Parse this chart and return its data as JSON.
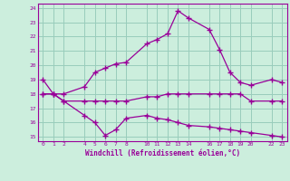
{
  "xlabel": "Windchill (Refroidissement éolien,°C)",
  "bg_color": "#cceedd",
  "grid_color": "#99ccbb",
  "line_color": "#990099",
  "line1_x": [
    0,
    1,
    2,
    4,
    5,
    6,
    7,
    8,
    10,
    11,
    12,
    13,
    14,
    16,
    17,
    18,
    19,
    20,
    22,
    23
  ],
  "line1_y": [
    19.0,
    18.0,
    18.0,
    18.5,
    19.5,
    19.8,
    20.1,
    20.2,
    21.5,
    21.8,
    22.2,
    23.8,
    23.3,
    22.5,
    21.1,
    19.5,
    18.8,
    18.6,
    19.0,
    18.8
  ],
  "line2_x": [
    0,
    1,
    2,
    4,
    5,
    6,
    7,
    8,
    10,
    11,
    12,
    13,
    14,
    16,
    17,
    18,
    19,
    20,
    22,
    23
  ],
  "line2_y": [
    18.0,
    18.0,
    17.5,
    17.5,
    17.5,
    17.5,
    17.5,
    17.5,
    17.8,
    17.8,
    18.0,
    18.0,
    18.0,
    18.0,
    18.0,
    18.0,
    18.0,
    17.5,
    17.5,
    17.5
  ],
  "line3_x": [
    0,
    1,
    2,
    4,
    5,
    6,
    7,
    8,
    10,
    11,
    12,
    13,
    14,
    16,
    17,
    18,
    19,
    20,
    22,
    23
  ],
  "line3_y": [
    18.0,
    18.0,
    17.5,
    16.5,
    16.0,
    15.1,
    15.5,
    16.3,
    16.5,
    16.3,
    16.2,
    16.0,
    15.8,
    15.7,
    15.6,
    15.5,
    15.4,
    15.3,
    15.1,
    15.0
  ],
  "xticks": [
    0,
    1,
    2,
    4,
    5,
    6,
    7,
    8,
    10,
    11,
    12,
    13,
    14,
    16,
    17,
    18,
    19,
    20,
    22,
    23
  ],
  "yticks": [
    15,
    16,
    17,
    18,
    19,
    20,
    21,
    22,
    23,
    24
  ],
  "ylim": [
    14.7,
    24.3
  ],
  "xlim": [
    -0.5,
    23.5
  ]
}
